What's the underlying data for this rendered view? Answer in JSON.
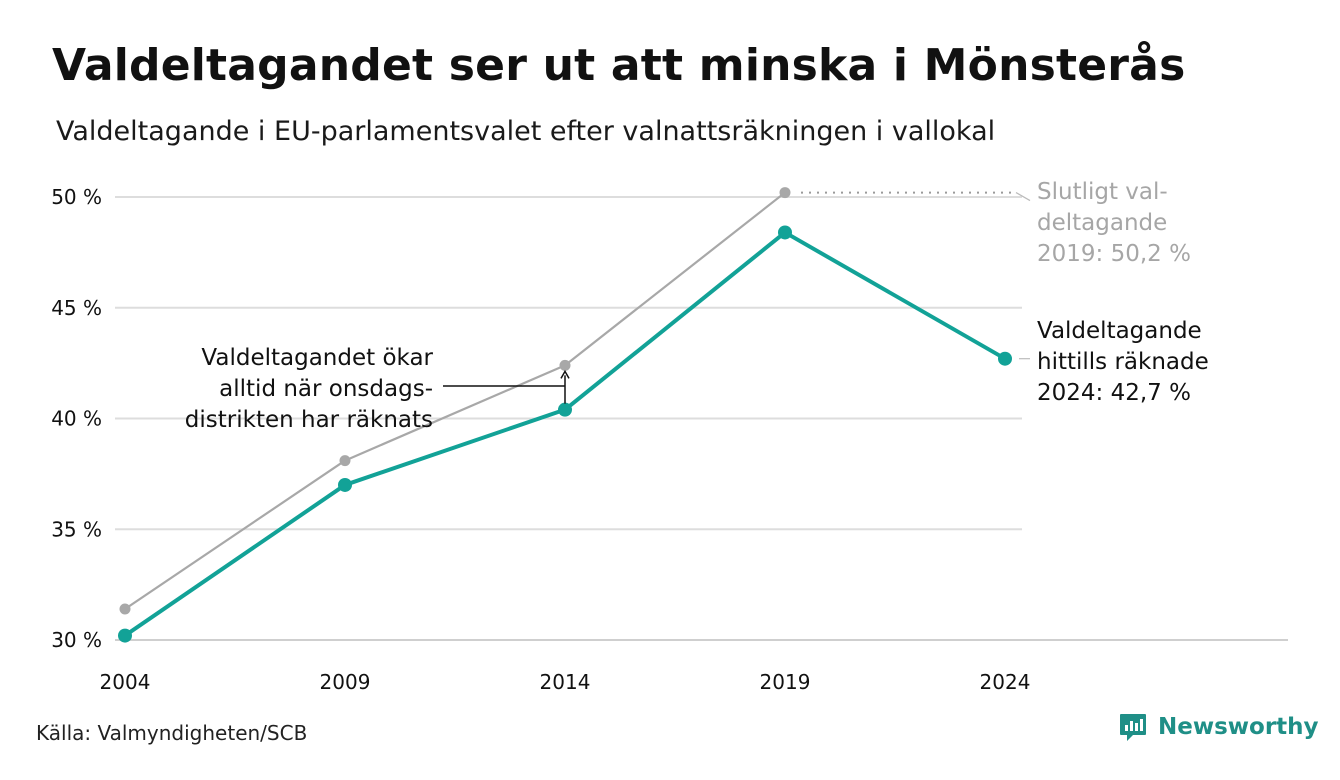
{
  "header": {
    "title": "Valdeltagandet ser ut att minska i Mönsterås",
    "subtitle": "Valdeltagande i EU-parlamentsvalet efter valnattsräkningen i vallokal"
  },
  "footer": {
    "source": "Källa: Valmyndigheten/SCB",
    "brand": "Newsworthy"
  },
  "colors": {
    "teal": "#12a297",
    "gray": "#a8a8a8",
    "grid": "#dddddd"
  },
  "chart_data": {
    "type": "line",
    "x": [
      2004,
      2009,
      2014,
      2019,
      2024
    ],
    "x_tick_labels": [
      "2004",
      "2009",
      "2014",
      "2019",
      "2024"
    ],
    "y_ticks": [
      30,
      35,
      40,
      45,
      50
    ],
    "y_tick_labels": [
      "30 %",
      "35 %",
      "40 %",
      "45 %",
      "50 %"
    ],
    "ylim": [
      30,
      50
    ],
    "grid": true,
    "series": [
      {
        "key": "final",
        "color": "#a8a8a8",
        "values": [
          31.4,
          38.1,
          42.4,
          50.2,
          null
        ]
      },
      {
        "key": "counted",
        "color": "#12a297",
        "values": [
          30.2,
          37.0,
          40.4,
          48.4,
          42.7
        ]
      }
    ],
    "annotations": {
      "final_label": [
        "Slutligt val-",
        "deltagande",
        "2019: 50,2 %"
      ],
      "counted_label": [
        "Valdeltagande",
        "hittills räknade",
        "2024: 42,7 %"
      ],
      "note": [
        "Valdeltagandet ökar",
        "alltid när onsdags-",
        "distrikten har räknats"
      ]
    }
  }
}
